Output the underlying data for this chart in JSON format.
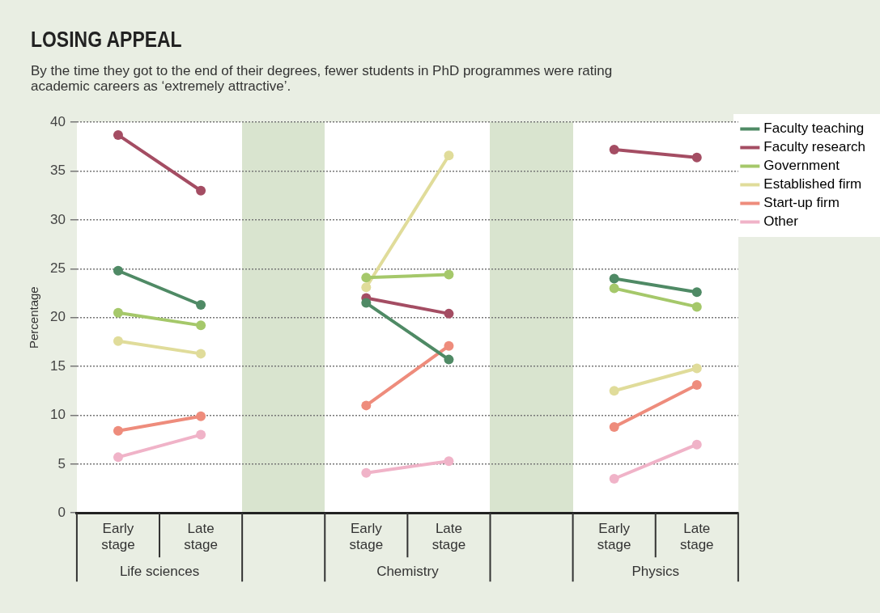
{
  "chart_data": {
    "type": "line",
    "title": "LOSING APPEAL",
    "subtitle": "By the time they got to the end of their degrees, fewer students in PhD programmes were rating academic careers as ‘extremely attractive’.",
    "ylabel": "Percentage",
    "categories": [
      "Early stage",
      "Late stage",
      null,
      "Early stage",
      "Late stage",
      null,
      "Early stage",
      "Late stage"
    ],
    "annotations": [
      "Life sciences",
      "Chemistry",
      "Physics"
    ],
    "series": [
      {
        "name": "Faculty teaching",
        "color": "#4f8a65",
        "values": [
          24.8,
          21.3,
          null,
          21.5,
          15.7,
          null,
          24.0,
          22.6
        ]
      },
      {
        "name": "Faculty research",
        "color": "#a44d63",
        "values": [
          38.7,
          33.0,
          null,
          22.0,
          20.4,
          null,
          37.2,
          36.4
        ]
      },
      {
        "name": "Government",
        "color": "#a5c86a",
        "values": [
          20.5,
          19.2,
          null,
          24.1,
          24.4,
          null,
          23.0,
          21.1
        ]
      },
      {
        "name": "Established firm",
        "color": "#e0dc9a",
        "values": [
          17.6,
          16.3,
          null,
          23.1,
          36.6,
          null,
          12.5,
          14.8
        ]
      },
      {
        "name": "Start-up firm",
        "color": "#ee8c7c",
        "values": [
          8.4,
          9.9,
          null,
          11.0,
          17.1,
          null,
          8.8,
          13.1
        ]
      },
      {
        "name": "Other",
        "color": "#f0b3c8",
        "values": [
          5.7,
          8.0,
          null,
          4.1,
          5.3,
          null,
          3.5,
          7.0
        ]
      }
    ],
    "ylim": [
      0,
      40
    ],
    "yticks": [
      0,
      5,
      10,
      15,
      20,
      25,
      30,
      35,
      40
    ],
    "grid": "y",
    "legend": "top right",
    "marker": "circle",
    "line_style": "solid"
  }
}
